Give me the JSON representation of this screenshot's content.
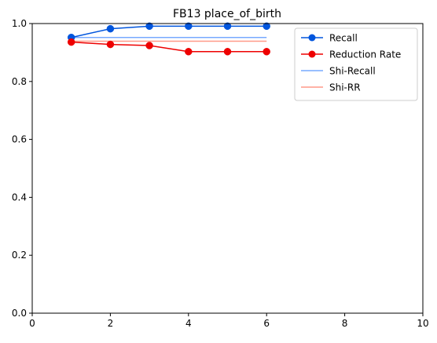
{
  "chart_data": {
    "type": "line",
    "title": "FB13 place_of_birth",
    "xlabel": "",
    "ylabel": "",
    "xlim": [
      0,
      10
    ],
    "ylim": [
      0,
      1.0
    ],
    "xticks": [
      "0",
      "2",
      "4",
      "6",
      "8",
      "10"
    ],
    "yticks": [
      "0.0",
      "0.2",
      "0.4",
      "0.6",
      "0.8",
      "1.0"
    ],
    "grid": false,
    "legend_position": "top-right",
    "series": [
      {
        "name": "Recall",
        "style": "line-marker",
        "color": "#0055dd",
        "points": [
          {
            "x": 1,
            "y": 0.952
          },
          {
            "x": 2,
            "y": 0.982
          },
          {
            "x": 3,
            "y": 0.991
          },
          {
            "x": 4,
            "y": 0.991
          },
          {
            "x": 5,
            "y": 0.991
          },
          {
            "x": 6,
            "y": 0.991
          }
        ]
      },
      {
        "name": "Reduction Rate",
        "style": "line-marker",
        "color": "#ee0000",
        "points": [
          {
            "x": 1,
            "y": 0.936
          },
          {
            "x": 2,
            "y": 0.928
          },
          {
            "x": 3,
            "y": 0.924
          },
          {
            "x": 4,
            "y": 0.903
          },
          {
            "x": 5,
            "y": 0.903
          },
          {
            "x": 6,
            "y": 0.903
          }
        ]
      },
      {
        "name": "Shi-Recall",
        "style": "line",
        "color": "#77aaff",
        "points": [
          {
            "x": 1,
            "y": 0.952
          },
          {
            "x": 6,
            "y": 0.952
          }
        ]
      },
      {
        "name": "Shi-RR",
        "style": "line",
        "color": "#ff9988",
        "points": [
          {
            "x": 1,
            "y": 0.939
          },
          {
            "x": 6,
            "y": 0.939
          }
        ]
      }
    ]
  }
}
